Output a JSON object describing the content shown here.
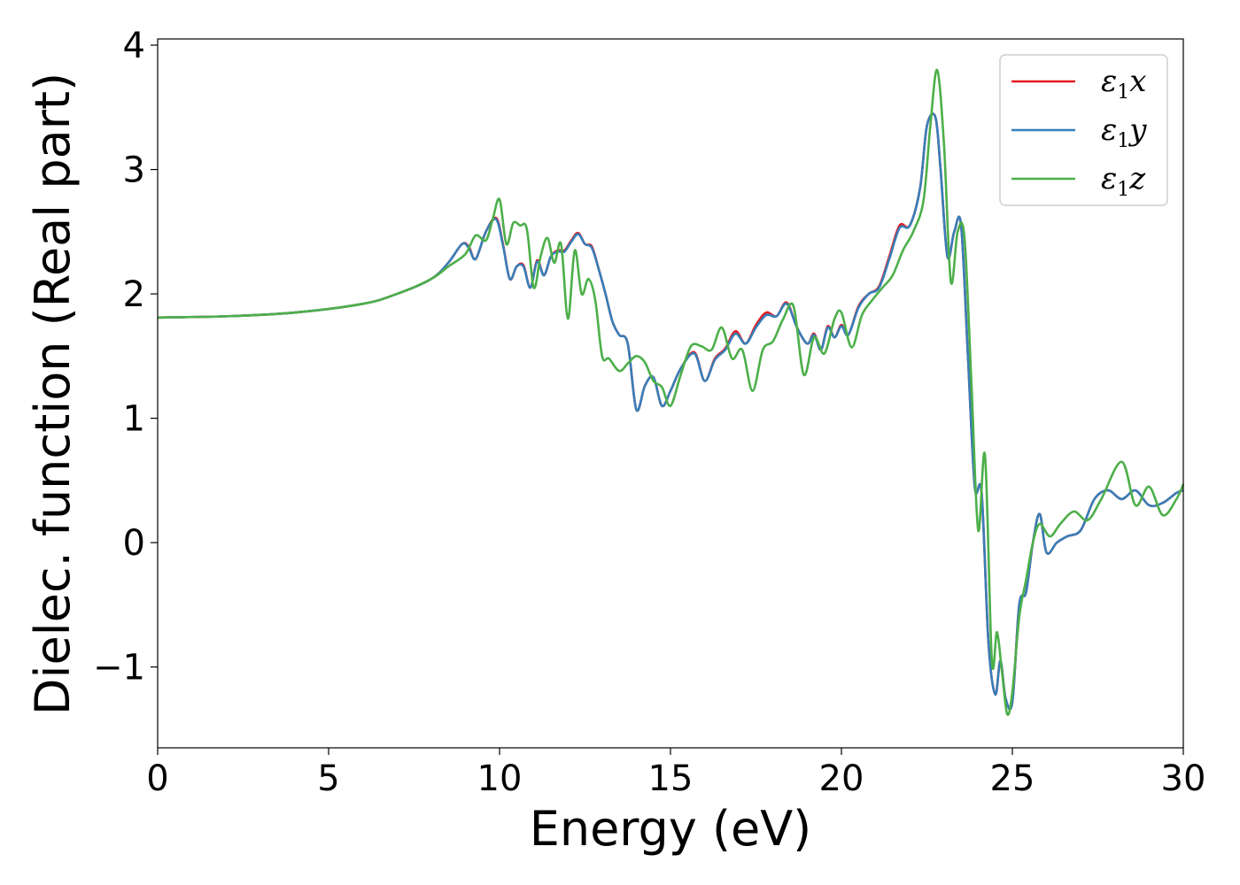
{
  "chart_data": {
    "type": "line",
    "xlabel": "Energy (eV)",
    "ylabel": "Dielec. function (Real part)",
    "xlim": [
      0,
      30
    ],
    "ylim": [
      -1.65,
      4.05
    ],
    "xticks": [
      0,
      5,
      10,
      15,
      20,
      25,
      30
    ],
    "xtick_labels": [
      "0",
      "5",
      "10",
      "15",
      "20",
      "25",
      "30"
    ],
    "yticks": [
      -1,
      0,
      1,
      2,
      3,
      4
    ],
    "ytick_labels": [
      "−1",
      "0",
      "1",
      "2",
      "3",
      "4"
    ],
    "grid": false,
    "legend_position": "top-right",
    "series": [
      {
        "name": "ε₁x",
        "legend_base": "ε",
        "legend_sub": "1",
        "legend_var": "x",
        "color": "#e41a1c",
        "x": [
          0,
          2,
          4,
          6,
          7,
          8,
          8.5,
          8.9,
          9.1,
          9.3,
          9.6,
          9.9,
          10.1,
          10.3,
          10.5,
          10.7,
          10.9,
          11.1,
          11.3,
          11.5,
          11.7,
          11.9,
          12.1,
          12.3,
          12.5,
          12.7,
          12.9,
          13.1,
          13.3,
          13.5,
          13.75,
          14,
          14.25,
          14.5,
          14.75,
          15,
          15.3,
          15.7,
          16,
          16.3,
          16.6,
          16.9,
          17.2,
          17.5,
          17.8,
          18.1,
          18.4,
          18.7,
          19,
          19.2,
          19.4,
          19.6,
          19.8,
          20,
          20.2,
          20.5,
          20.8,
          21.1,
          21.4,
          21.7,
          22,
          22.3,
          22.5,
          22.75,
          22.9,
          23.1,
          23.3,
          23.5,
          23.7,
          23.9,
          24.1,
          24.3,
          24.5,
          24.65,
          24.8,
          25,
          25.2,
          25.4,
          25.6,
          25.8,
          26,
          26.3,
          26.6,
          27,
          27.4,
          27.8,
          28.2,
          28.6,
          29,
          29.4,
          29.8,
          30
        ],
        "y": [
          1.81,
          1.82,
          1.85,
          1.92,
          2.0,
          2.12,
          2.25,
          2.4,
          2.38,
          2.28,
          2.5,
          2.61,
          2.4,
          2.12,
          2.22,
          2.23,
          2.05,
          2.27,
          2.15,
          2.3,
          2.35,
          2.35,
          2.43,
          2.49,
          2.4,
          2.38,
          2.2,
          2.0,
          1.78,
          1.67,
          1.6,
          1.07,
          1.26,
          1.33,
          1.1,
          1.22,
          1.4,
          1.53,
          1.3,
          1.48,
          1.56,
          1.7,
          1.6,
          1.75,
          1.85,
          1.82,
          1.93,
          1.73,
          1.6,
          1.68,
          1.55,
          1.74,
          1.65,
          1.75,
          1.67,
          1.9,
          2.0,
          2.06,
          2.3,
          2.55,
          2.55,
          2.85,
          3.35,
          3.42,
          3.0,
          2.3,
          2.5,
          2.55,
          1.5,
          0.45,
          0.4,
          -0.8,
          -1.22,
          -0.95,
          -1.25,
          -1.28,
          -0.5,
          -0.4,
          0.0,
          0.23,
          -0.08,
          0.0,
          0.05,
          0.1,
          0.35,
          0.42,
          0.35,
          0.42,
          0.3,
          0.32,
          0.4,
          0.42
        ]
      },
      {
        "name": "ε₁y",
        "legend_base": "ε",
        "legend_sub": "1",
        "legend_var": "y",
        "color": "#377eb8",
        "x": [
          0,
          2,
          4,
          6,
          7,
          8,
          8.5,
          8.9,
          9.1,
          9.3,
          9.6,
          9.9,
          10.1,
          10.3,
          10.5,
          10.7,
          10.9,
          11.1,
          11.3,
          11.5,
          11.7,
          11.9,
          12.1,
          12.3,
          12.5,
          12.7,
          12.9,
          13.1,
          13.3,
          13.5,
          13.75,
          14,
          14.25,
          14.5,
          14.75,
          15,
          15.3,
          15.7,
          16,
          16.3,
          16.6,
          16.9,
          17.2,
          17.5,
          17.8,
          18.1,
          18.4,
          18.7,
          19,
          19.2,
          19.4,
          19.6,
          19.8,
          20,
          20.2,
          20.5,
          20.8,
          21.1,
          21.4,
          21.7,
          22,
          22.3,
          22.5,
          22.75,
          22.9,
          23.1,
          23.3,
          23.5,
          23.7,
          23.9,
          24.1,
          24.3,
          24.5,
          24.65,
          24.8,
          25,
          25.2,
          25.4,
          25.6,
          25.8,
          26,
          26.3,
          26.6,
          27,
          27.4,
          27.8,
          28.2,
          28.6,
          29,
          29.4,
          29.8,
          30
        ],
        "y": [
          1.81,
          1.82,
          1.85,
          1.92,
          2.0,
          2.12,
          2.25,
          2.4,
          2.37,
          2.28,
          2.5,
          2.6,
          2.39,
          2.12,
          2.22,
          2.22,
          2.05,
          2.26,
          2.15,
          2.3,
          2.34,
          2.34,
          2.42,
          2.48,
          2.4,
          2.37,
          2.2,
          2.0,
          1.78,
          1.67,
          1.6,
          1.07,
          1.26,
          1.33,
          1.1,
          1.22,
          1.4,
          1.52,
          1.3,
          1.47,
          1.55,
          1.68,
          1.6,
          1.73,
          1.83,
          1.82,
          1.92,
          1.73,
          1.6,
          1.67,
          1.55,
          1.73,
          1.65,
          1.74,
          1.67,
          1.89,
          2.0,
          2.05,
          2.28,
          2.53,
          2.55,
          2.85,
          3.35,
          3.42,
          3.0,
          2.3,
          2.5,
          2.55,
          1.5,
          0.45,
          0.4,
          -0.8,
          -1.22,
          -0.95,
          -1.25,
          -1.28,
          -0.5,
          -0.4,
          0.0,
          0.23,
          -0.08,
          0.0,
          0.05,
          0.1,
          0.35,
          0.42,
          0.35,
          0.42,
          0.3,
          0.32,
          0.4,
          0.42
        ]
      },
      {
        "name": "ε₁z",
        "legend_base": "ε",
        "legend_sub": "1",
        "legend_var": "z",
        "color": "#4daf4a",
        "x": [
          0,
          2,
          4,
          6,
          7,
          8,
          8.5,
          9,
          9.3,
          9.6,
          9.8,
          10,
          10.2,
          10.4,
          10.6,
          10.8,
          11,
          11.2,
          11.4,
          11.6,
          11.8,
          12,
          12.2,
          12.4,
          12.6,
          12.8,
          13,
          13.2,
          13.5,
          13.75,
          14,
          14.25,
          14.5,
          14.75,
          15,
          15.3,
          15.6,
          15.9,
          16.2,
          16.5,
          16.8,
          17.1,
          17.4,
          17.7,
          18,
          18.3,
          18.6,
          18.9,
          19.2,
          19.5,
          19.8,
          20,
          20.3,
          20.6,
          20.9,
          21.2,
          21.5,
          21.8,
          22.1,
          22.4,
          22.6,
          22.8,
          23,
          23.2,
          23.4,
          23.6,
          23.8,
          24,
          24.2,
          24.4,
          24.55,
          24.7,
          24.85,
          25,
          25.2,
          25.4,
          25.6,
          25.8,
          26.1,
          26.4,
          26.8,
          27.2,
          27.6,
          28.2,
          28.6,
          29,
          29.4,
          29.8,
          30
        ],
        "y": [
          1.81,
          1.82,
          1.85,
          1.92,
          2.0,
          2.12,
          2.22,
          2.32,
          2.47,
          2.43,
          2.6,
          2.76,
          2.4,
          2.57,
          2.55,
          2.52,
          2.05,
          2.3,
          2.45,
          2.25,
          2.4,
          1.8,
          2.35,
          2.0,
          2.12,
          1.95,
          1.5,
          1.48,
          1.38,
          1.44,
          1.5,
          1.45,
          1.3,
          1.25,
          1.1,
          1.35,
          1.58,
          1.58,
          1.55,
          1.73,
          1.48,
          1.55,
          1.22,
          1.55,
          1.62,
          1.8,
          1.9,
          1.35,
          1.65,
          1.52,
          1.8,
          1.85,
          1.57,
          1.83,
          1.95,
          2.05,
          2.15,
          2.35,
          2.5,
          2.75,
          3.35,
          3.8,
          3.2,
          2.1,
          2.5,
          2.45,
          1.3,
          0.1,
          0.7,
          -0.95,
          -0.72,
          -1.05,
          -1.38,
          -1.2,
          -0.6,
          -0.3,
          0.0,
          0.15,
          0.05,
          0.15,
          0.25,
          0.18,
          0.35,
          0.65,
          0.3,
          0.45,
          0.22,
          0.35,
          0.47
        ]
      }
    ]
  }
}
